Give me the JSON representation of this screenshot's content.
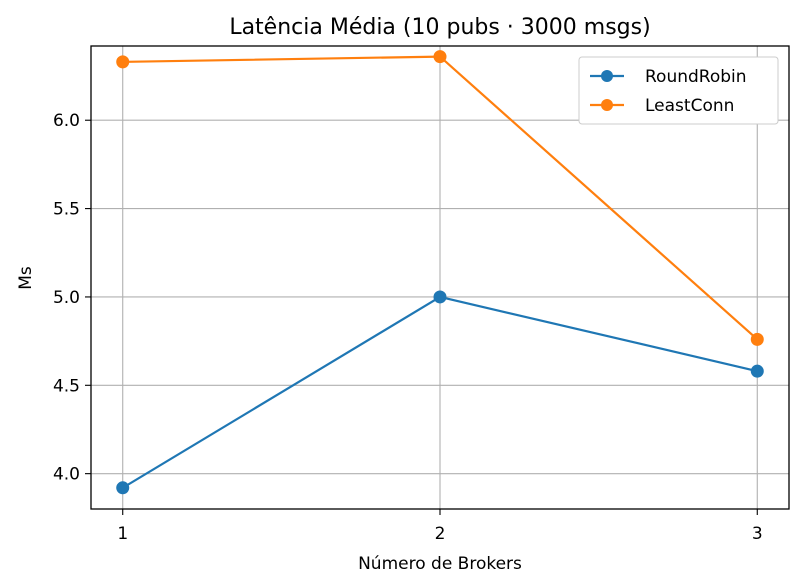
{
  "chart_data": {
    "type": "line",
    "title": "Latência Média (10 pubs · 3000 msgs)",
    "xlabel": "Número de Brokers",
    "ylabel": "Ms",
    "x": [
      1,
      2,
      3
    ],
    "x_ticks": [
      "1",
      "2",
      "3"
    ],
    "y_ticks": [
      "4.0",
      "4.5",
      "5.0",
      "5.5",
      "6.0"
    ],
    "y_tick_values": [
      4.0,
      4.5,
      5.0,
      5.5,
      6.0
    ],
    "xlim": [
      0.9,
      3.1
    ],
    "ylim": [
      3.8,
      6.42
    ],
    "grid": true,
    "legend_position": "top-right",
    "series": [
      {
        "name": "RoundRobin",
        "color": "#1f77b4",
        "marker": "circle",
        "values": [
          3.92,
          5.0,
          4.58
        ]
      },
      {
        "name": "LeastConn",
        "color": "#ff7f0e",
        "marker": "circle",
        "values": [
          6.33,
          6.36,
          4.76
        ]
      }
    ]
  }
}
